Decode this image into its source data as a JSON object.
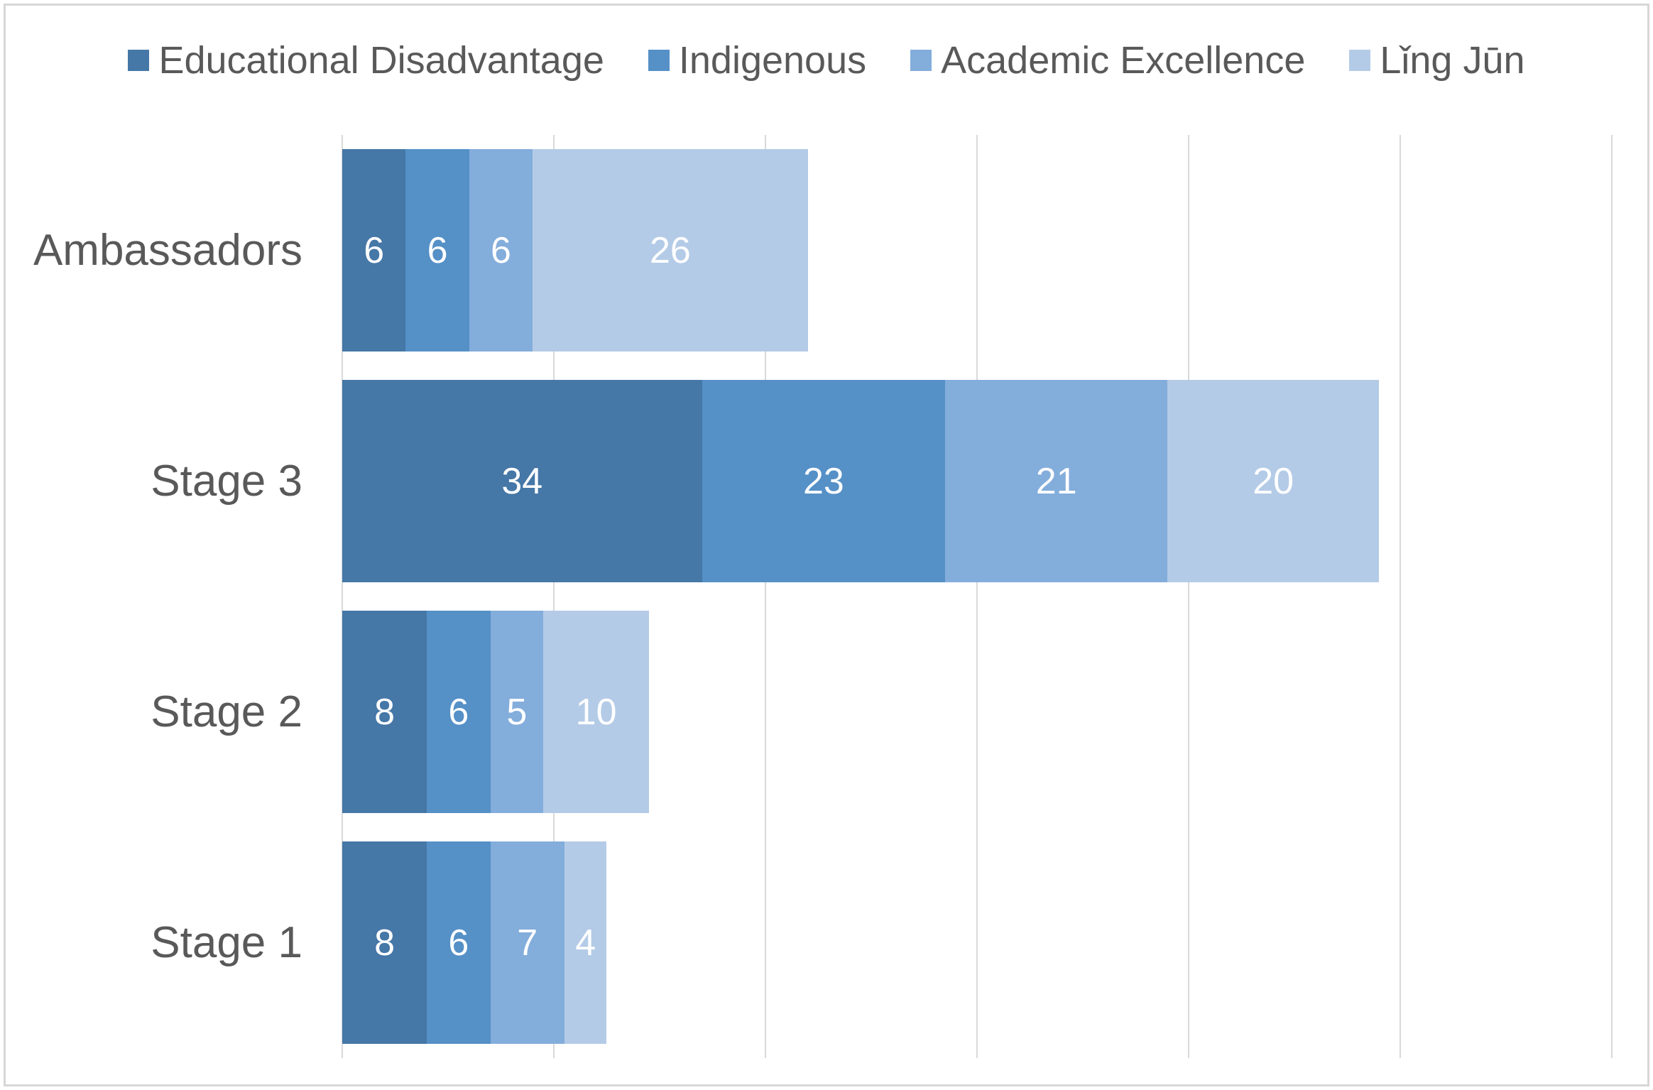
{
  "chart_data": {
    "type": "bar",
    "orientation": "horizontal-stacked",
    "title": "",
    "xlabel": "",
    "ylabel": "",
    "categories": [
      "Ambassadors",
      "Stage 3",
      "Stage 2",
      "Stage 1"
    ],
    "series": [
      {
        "name": "Educational Disadvantage",
        "color": "#4577A7",
        "values": [
          6,
          34,
          8,
          8
        ]
      },
      {
        "name": "Indigenous",
        "color": "#5590C7",
        "values": [
          6,
          23,
          6,
          6
        ]
      },
      {
        "name": "Academic Excellence",
        "color": "#83ADDB",
        "values": [
          6,
          21,
          5,
          7
        ]
      },
      {
        "name": "Lǐng Jūn",
        "color": "#B4CBE7",
        "values": [
          26,
          20,
          10,
          4
        ]
      }
    ],
    "totals": [
      44,
      98,
      29,
      25
    ],
    "xlim": [
      0,
      120
    ],
    "gridline_step": 20,
    "grid": true,
    "gridline_color": "#D9D9D9",
    "legend_position": "top",
    "value_labels": "inside-center",
    "value_label_color": "#FFFFFF",
    "category_label_color": "#595959",
    "legend_text_color": "#595959",
    "background_color": "#FFFFFF",
    "border_color": "#D7D7D7"
  }
}
